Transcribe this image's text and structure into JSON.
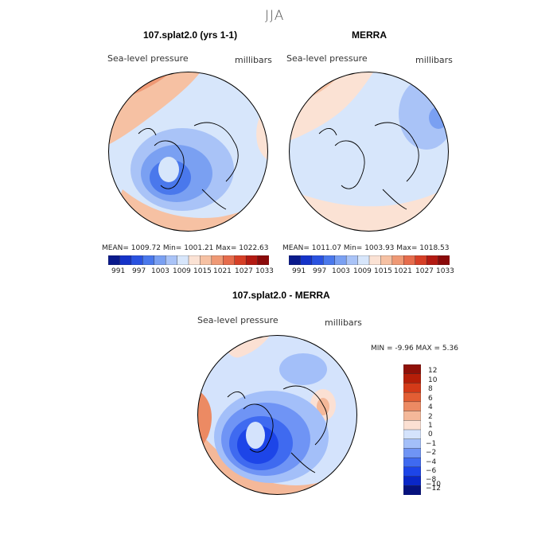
{
  "main_title": "JJA",
  "colors": {
    "abs_palette": [
      "#0a1a8c",
      "#1533c9",
      "#2a52e0",
      "#4a78ec",
      "#7aa0f2",
      "#a9c3f7",
      "#d7e6fb",
      "#fbe2d4",
      "#f6c1a3",
      "#ef9975",
      "#e66c4c",
      "#d63f26",
      "#b31a12",
      "#8a0a0a"
    ],
    "diff_palette": [
      "#06127e",
      "#0a27c7",
      "#1d45e8",
      "#3f6af0",
      "#6f94f5",
      "#a3bff9",
      "#d4e3fc",
      "#fbe0d3",
      "#f4b899",
      "#ec8a63",
      "#e35e34",
      "#d43a18",
      "#b51e08",
      "#8f1008"
    ]
  },
  "panels": [
    {
      "title": "107.splat2.0 (yrs 1-1)",
      "variable": "Sea-level pressure",
      "units": "millibars",
      "stats": "MEAN= 1009.72   Min= 1001.21   Max= 1022.63",
      "colorbar_labels": [
        "991",
        "997",
        "1003",
        "1009",
        "1015",
        "1021",
        "1027",
        "1033"
      ]
    },
    {
      "title": "MERRA",
      "variable": "Sea-level pressure",
      "units": "millibars",
      "stats": "MEAN= 1011.07   Min= 1003.93   Max= 1018.53",
      "colorbar_labels": [
        "991",
        "997",
        "1003",
        "1009",
        "1015",
        "1021",
        "1027",
        "1033"
      ]
    }
  ],
  "diff_panel": {
    "title": "107.splat2.0 - MERRA",
    "variable": "Sea-level pressure",
    "units": "millibars",
    "stats": "MIN =   -9.96 MAX =    5.36",
    "colorbar_labels": [
      "12",
      "10",
      "8",
      "6",
      "4",
      "2",
      "1",
      "0",
      "−1",
      "−2",
      "−4",
      "−6",
      "−8",
      "−10",
      "−12"
    ]
  }
}
